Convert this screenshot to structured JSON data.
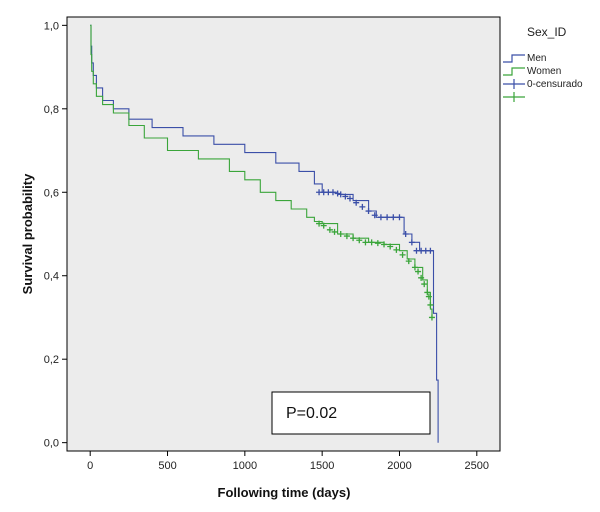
{
  "chart_data": {
    "type": "line",
    "subtype": "kaplan-meier step",
    "xlabel": "Following time (days)",
    "ylabel": "Survival probability",
    "xlim": [
      -150,
      2650
    ],
    "ylim": [
      -0.02,
      1.02
    ],
    "xticks": [
      0,
      500,
      1000,
      1500,
      2000,
      2500
    ],
    "xtick_labels": [
      "0",
      "500",
      "1000",
      "1500",
      "2000",
      "2500"
    ],
    "yticks": [
      0.0,
      0.2,
      0.4,
      0.6,
      0.8,
      1.0
    ],
    "ytick_labels": [
      "0,0",
      "0,2",
      "0,4",
      "0,6",
      "0,8",
      "1,0"
    ],
    "grid": false,
    "background": "#ececec",
    "legend": {
      "title": "Sex_ID",
      "placement": "right",
      "entries": [
        "Men",
        "Women",
        "0-censurado",
        ""
      ]
    },
    "annotation": "P=0.02",
    "series": [
      {
        "name": "Men",
        "color": "#3b4fa8",
        "points": [
          [
            0,
            1.0
          ],
          [
            5,
            0.95
          ],
          [
            10,
            0.91
          ],
          [
            20,
            0.88
          ],
          [
            40,
            0.85
          ],
          [
            80,
            0.82
          ],
          [
            150,
            0.8
          ],
          [
            250,
            0.775
          ],
          [
            400,
            0.755
          ],
          [
            600,
            0.735
          ],
          [
            800,
            0.715
          ],
          [
            1000,
            0.695
          ],
          [
            1200,
            0.67
          ],
          [
            1350,
            0.65
          ],
          [
            1450,
            0.62
          ],
          [
            1500,
            0.6
          ],
          [
            1550,
            0.6
          ],
          [
            1600,
            0.595
          ],
          [
            1700,
            0.58
          ],
          [
            1800,
            0.555
          ],
          [
            1850,
            0.54
          ],
          [
            2000,
            0.54
          ],
          [
            2030,
            0.5
          ],
          [
            2080,
            0.48
          ],
          [
            2130,
            0.46
          ],
          [
            2220,
            0.46
          ],
          [
            2220,
            0.31
          ],
          [
            2240,
            0.31
          ],
          [
            2240,
            0.15
          ],
          [
            2250,
            0.15
          ],
          [
            2250,
            0.0
          ]
        ],
        "censored": [
          [
            1480,
            0.6
          ],
          [
            1510,
            0.6
          ],
          [
            1540,
            0.6
          ],
          [
            1570,
            0.6
          ],
          [
            1600,
            0.597
          ],
          [
            1620,
            0.595
          ],
          [
            1650,
            0.59
          ],
          [
            1680,
            0.585
          ],
          [
            1720,
            0.575
          ],
          [
            1760,
            0.565
          ],
          [
            1800,
            0.555
          ],
          [
            1840,
            0.545
          ],
          [
            1880,
            0.54
          ],
          [
            1920,
            0.54
          ],
          [
            1960,
            0.54
          ],
          [
            2000,
            0.54
          ],
          [
            2040,
            0.5
          ],
          [
            2080,
            0.48
          ],
          [
            2110,
            0.46
          ],
          [
            2140,
            0.46
          ],
          [
            2170,
            0.46
          ],
          [
            2200,
            0.46
          ]
        ]
      },
      {
        "name": "Women",
        "color": "#3aa53a",
        "points": [
          [
            0,
            1.0
          ],
          [
            5,
            0.93
          ],
          [
            10,
            0.89
          ],
          [
            20,
            0.86
          ],
          [
            40,
            0.83
          ],
          [
            80,
            0.81
          ],
          [
            150,
            0.79
          ],
          [
            250,
            0.76
          ],
          [
            350,
            0.73
          ],
          [
            500,
            0.7
          ],
          [
            700,
            0.68
          ],
          [
            900,
            0.65
          ],
          [
            1000,
            0.63
          ],
          [
            1100,
            0.6
          ],
          [
            1200,
            0.58
          ],
          [
            1300,
            0.56
          ],
          [
            1400,
            0.54
          ],
          [
            1450,
            0.53
          ],
          [
            1500,
            0.525
          ],
          [
            1600,
            0.5
          ],
          [
            1700,
            0.49
          ],
          [
            1800,
            0.48
          ],
          [
            1900,
            0.475
          ],
          [
            2000,
            0.46
          ],
          [
            2050,
            0.44
          ],
          [
            2100,
            0.42
          ],
          [
            2150,
            0.39
          ],
          [
            2180,
            0.36
          ],
          [
            2200,
            0.32
          ],
          [
            2210,
            0.3
          ]
        ],
        "censored": [
          [
            1480,
            0.525
          ],
          [
            1510,
            0.52
          ],
          [
            1550,
            0.51
          ],
          [
            1580,
            0.505
          ],
          [
            1620,
            0.5
          ],
          [
            1660,
            0.495
          ],
          [
            1700,
            0.49
          ],
          [
            1740,
            0.485
          ],
          [
            1780,
            0.48
          ],
          [
            1820,
            0.48
          ],
          [
            1860,
            0.478
          ],
          [
            1900,
            0.475
          ],
          [
            1940,
            0.47
          ],
          [
            1980,
            0.462
          ],
          [
            2020,
            0.45
          ],
          [
            2060,
            0.435
          ],
          [
            2100,
            0.42
          ],
          [
            2120,
            0.41
          ],
          [
            2140,
            0.395
          ],
          [
            2160,
            0.38
          ],
          [
            2180,
            0.36
          ],
          [
            2190,
            0.35
          ],
          [
            2200,
            0.33
          ],
          [
            2210,
            0.3
          ]
        ]
      }
    ]
  }
}
